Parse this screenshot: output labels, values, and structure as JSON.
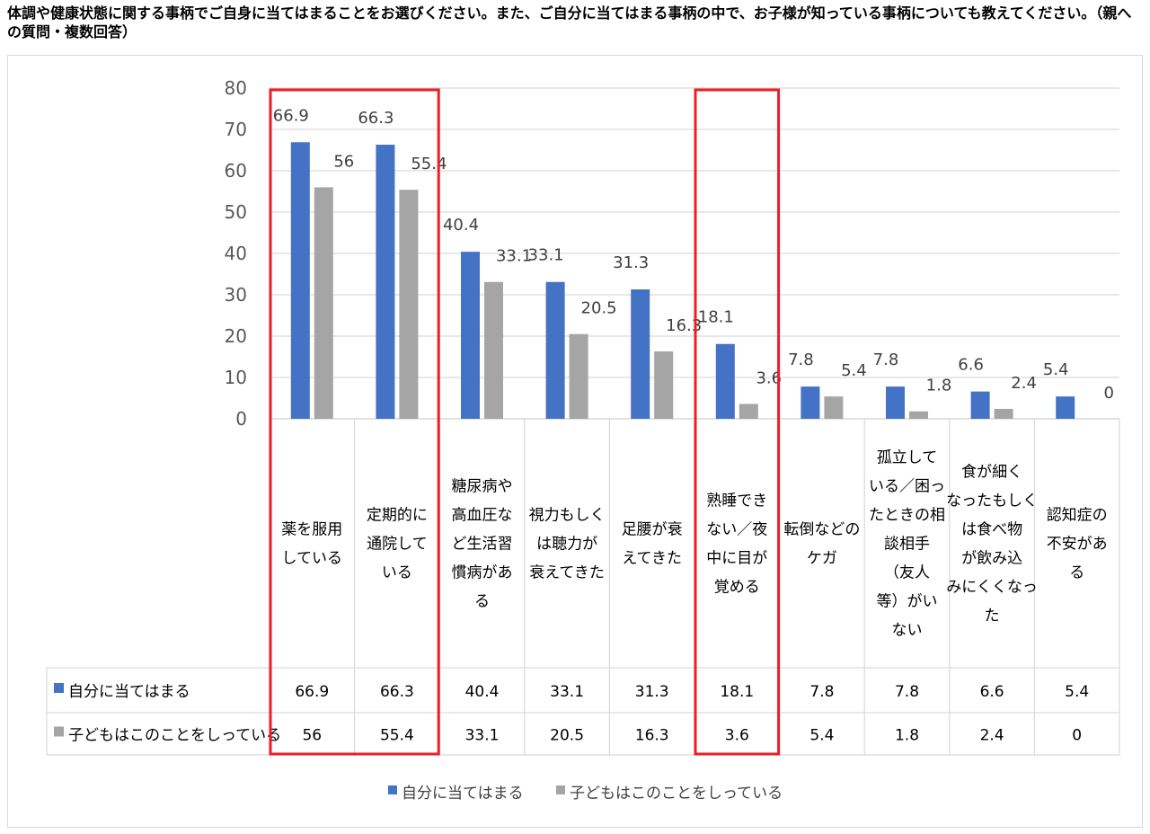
{
  "title": "体調や健康状態に関する事柄でご自身に当てはまることをお選びください。また、ご自分に当てはまる事柄の中で、お子様が知っている事柄についても教えてください。（親への質問・複数回答）",
  "chart_data": {
    "type": "bar",
    "categories": [
      [
        "薬を服用",
        "している"
      ],
      [
        "定期的に",
        "通院して",
        "いる"
      ],
      [
        "糖尿病や",
        "高血圧な",
        "ど生活習",
        "慣病があ",
        "る"
      ],
      [
        "視力もしく",
        "は聴力が",
        "衰えてきた"
      ],
      [
        "足腰が衰",
        "えてきた"
      ],
      [
        "熟睡でき",
        "ない／夜",
        "中に目が",
        "覚める"
      ],
      [
        "転倒などの",
        "ケガ"
      ],
      [
        "孤立して",
        "いる／困っ",
        "たときの相",
        "談相手",
        "（友人",
        "等）がい",
        "ない"
      ],
      [
        "食が細く",
        "なったもしく",
        "は食べ物",
        "が飲み込",
        "みにくくなっ",
        "た"
      ],
      [
        "認知症の",
        "不安があ",
        "る"
      ]
    ],
    "series": [
      {
        "name": "自分に当てはまる",
        "color": "#4472C4",
        "values": [
          66.9,
          66.3,
          40.4,
          33.1,
          31.3,
          18.1,
          7.8,
          7.8,
          6.6,
          5.4
        ],
        "labels": [
          "66.9",
          "66.3",
          "40.4",
          "33.1",
          "31.3",
          "18.1",
          "7.8",
          "7.8",
          "6.6",
          "5.4"
        ]
      },
      {
        "name": "子どもはこのことをしっている",
        "color": "#A5A5A5",
        "values": [
          56,
          55.4,
          33.1,
          20.5,
          16.3,
          3.6,
          5.4,
          1.8,
          2.4,
          0
        ],
        "labels": [
          "56",
          "55.4",
          "33.1",
          "20.5",
          "16.3",
          "3.6",
          "5.4",
          "1.8",
          "2.4",
          "0"
        ]
      }
    ],
    "ylim": [
      0,
      80
    ],
    "yticks": [
      "0",
      "10",
      "20",
      "30",
      "40",
      "50",
      "60",
      "70",
      "80"
    ],
    "grid": true,
    "legend_position": "bottom",
    "data_table": true,
    "highlight_boxes": [
      [
        0,
        1
      ],
      [
        5,
        5
      ]
    ],
    "highlight_color": "#EE1C25",
    "gridline_color": "#D9D9D9"
  }
}
